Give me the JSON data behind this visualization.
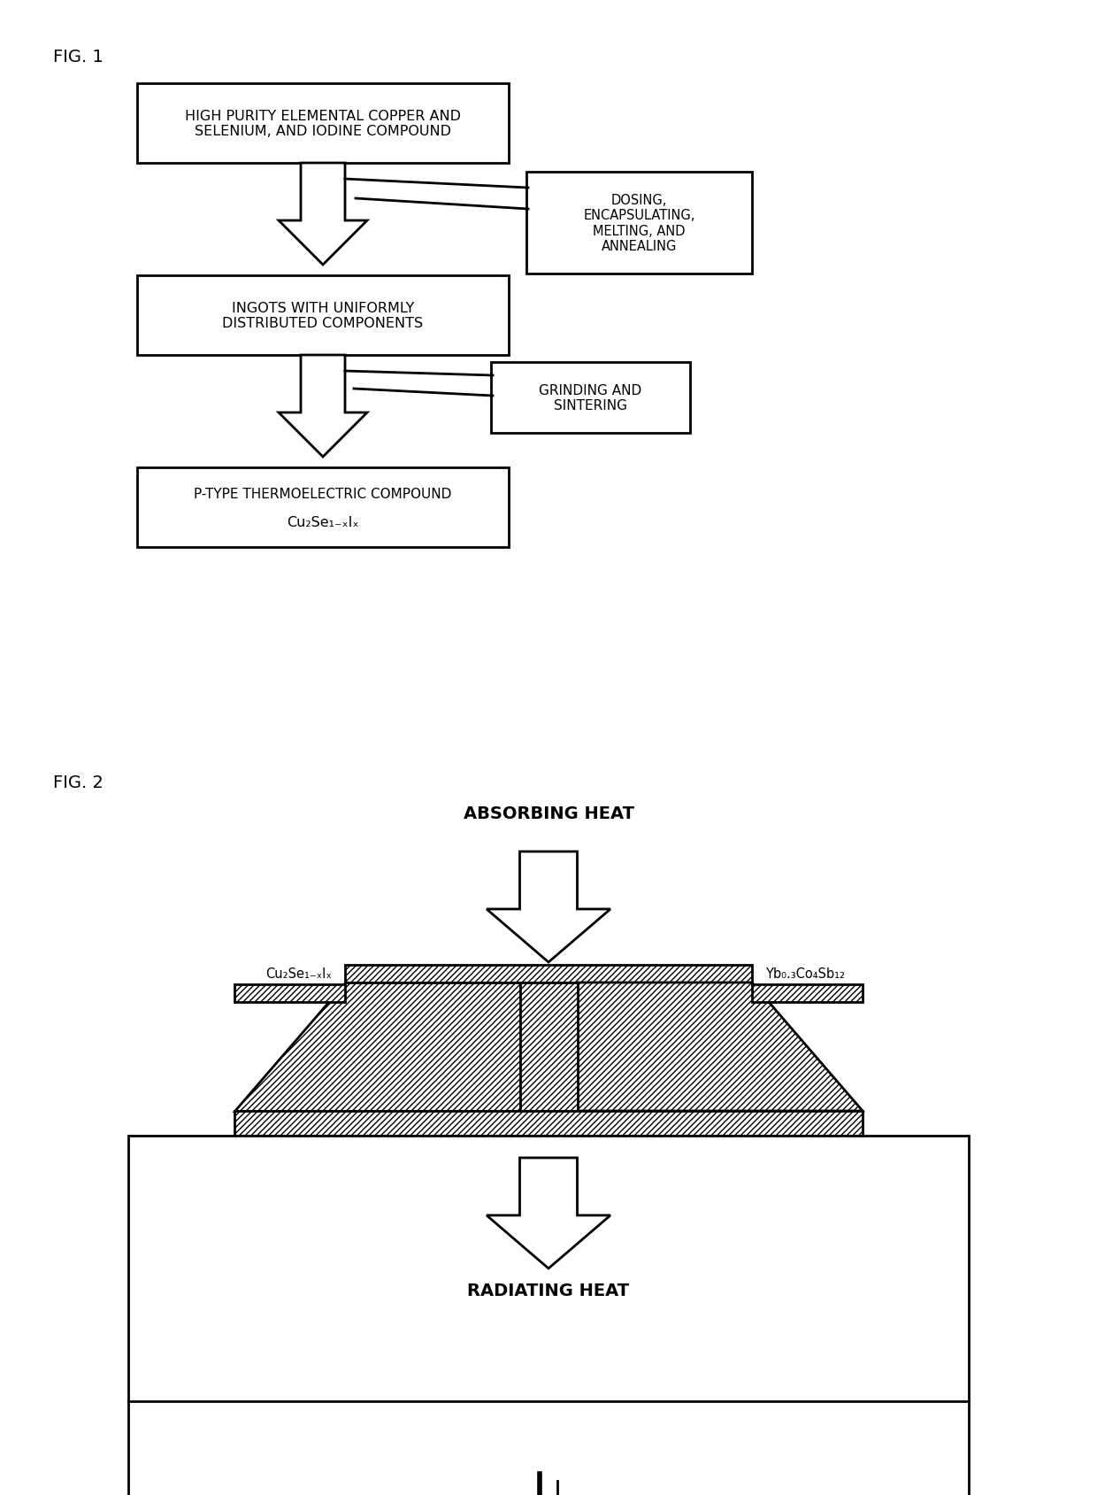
{
  "fig_label_1": "FIG. 1",
  "fig_label_2": "FIG. 2",
  "box1_text": "HIGH PURITY ELEMENTAL COPPER AND\nSELENIUM, AND IODINE COMPOUND",
  "box2_text": "INGOTS WITH UNIFORMLY\nDISTRIBUTED COMPONENTS",
  "box3_line1": "P-TYPE THERMOELECTRIC COMPOUND",
  "box3_line2": "Cu₂Se₁₋ₓIₓ",
  "side_box1_text": "DOSING,\nENCAPSULATING,\nMELTING, AND\nANNEALING",
  "side_box2_text": "GRINDING AND\nSINTERING",
  "absorbing_heat_text": "ABSORBING HEAT",
  "radiating_heat_text": "RADIATING HEAT",
  "label_left": "Cu₂Se₁₋ₓIₓ",
  "label_right": "Yb₀.₃Co₄Sb₁₂",
  "bg_color": "#ffffff"
}
